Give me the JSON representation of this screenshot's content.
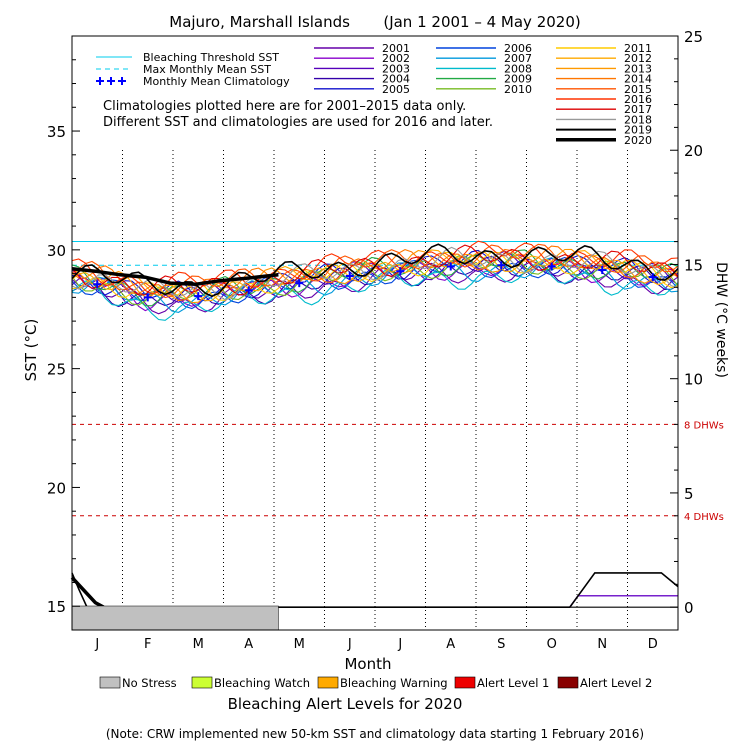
{
  "chart_data": {
    "type": "line",
    "title": "Majuro, Marshall Islands       (Jan 1 2001 – 4 May 2020)",
    "xlabel": "Month",
    "ylabel": "SST (°C)",
    "y2label": "DHW (°C weeks)",
    "ylim": [
      14,
      39
    ],
    "y2lim": [
      -1,
      25
    ],
    "yticks": [
      15,
      20,
      25,
      30,
      35
    ],
    "y2ticks": [
      0,
      5,
      10,
      15,
      20,
      25
    ],
    "months": [
      "J",
      "F",
      "M",
      "A",
      "M",
      "J",
      "J",
      "A",
      "S",
      "O",
      "N",
      "D"
    ],
    "bleaching_threshold_sst": 30.35,
    "max_monthly_mean_sst": 29.35,
    "monthly_mean_climatology": [
      28.55,
      28.0,
      28.05,
      28.3,
      28.6,
      28.9,
      29.1,
      29.3,
      29.35,
      29.3,
      29.15,
      28.85
    ],
    "dhw_reference_lines": [
      {
        "value": 8,
        "label": "8 DHWs",
        "color": "#cc0000"
      },
      {
        "value": 4,
        "label": "4 DHWs",
        "color": "#cc0000"
      }
    ],
    "series": [
      {
        "name": "2001",
        "color": "#6600aa",
        "base": 28.5
      },
      {
        "name": "2002",
        "color": "#8800cc",
        "base": 28.7
      },
      {
        "name": "2003",
        "color": "#5500bb",
        "base": 28.8
      },
      {
        "name": "2004",
        "color": "#3300aa",
        "base": 28.6
      },
      {
        "name": "2005",
        "color": "#1111cc",
        "base": 28.9
      },
      {
        "name": "2006",
        "color": "#0044dd",
        "base": 28.7
      },
      {
        "name": "2007",
        "color": "#0099dd",
        "base": 28.6
      },
      {
        "name": "2008",
        "color": "#00bbcc",
        "base": 28.3
      },
      {
        "name": "2009",
        "color": "#22aa44",
        "base": 28.9
      },
      {
        "name": "2010",
        "color": "#77bb22",
        "base": 28.8
      },
      {
        "name": "2011",
        "color": "#ffcc00",
        "base": 28.9
      },
      {
        "name": "2012",
        "color": "#ffaa00",
        "base": 29.0
      },
      {
        "name": "2013",
        "color": "#ff9900",
        "base": 29.0
      },
      {
        "name": "2014",
        "color": "#ff7700",
        "base": 29.1
      },
      {
        "name": "2015",
        "color": "#ff5500",
        "base": 29.2
      },
      {
        "name": "2016",
        "color": "#ff3300",
        "base": 29.3
      },
      {
        "name": "2017",
        "color": "#dd0000",
        "base": 29.1
      },
      {
        "name": "2018",
        "color": "#999999",
        "base": 29.0
      },
      {
        "name": "2019",
        "color": "#000000",
        "base": 29.2
      },
      {
        "name": "2020",
        "color": "#000000",
        "base": 28.9
      }
    ],
    "sst_2020_points": [
      [
        1,
        29.2
      ],
      [
        15,
        29.1
      ],
      [
        30,
        28.95
      ],
      [
        45,
        28.85
      ],
      [
        60,
        28.6
      ],
      [
        75,
        28.55
      ],
      [
        90,
        28.7
      ],
      [
        105,
        28.8
      ],
      [
        125,
        28.95
      ]
    ],
    "dhw_2019_points": [
      [
        1,
        1.5
      ],
      [
        5,
        0.8
      ],
      [
        10,
        0
      ],
      [
        300,
        0
      ],
      [
        315,
        1.5
      ],
      [
        330,
        1.5
      ],
      [
        355,
        1.5
      ],
      [
        365,
        0.9
      ]
    ],
    "dhw_2020_points": [
      [
        1,
        1.3
      ],
      [
        15,
        0.2
      ],
      [
        20,
        0
      ]
    ],
    "alert_bar_2020": {
      "start_day": 1,
      "end_day": 125,
      "level": "No Stress"
    },
    "legend_series_lines": [
      {
        "label": "Bleaching Threshold SST",
        "color": "#00ccee",
        "style": "solid"
      },
      {
        "label": "Max Monthly Mean SST",
        "color": "#00ccee",
        "style": "dashed"
      },
      {
        "label": "Monthly Mean Climatology",
        "color": "#0000ff",
        "style": "plus"
      }
    ],
    "note_lines": [
      "Climatologies plotted here are for 2001–2015 data only.",
      "Different SST and climatologies are used for 2016 and later."
    ],
    "alert_legend": [
      {
        "label": "No Stress",
        "color": "#c0c0c0"
      },
      {
        "label": "Bleaching Watch",
        "color": "#ccff33"
      },
      {
        "label": "Bleaching Warning",
        "color": "#ffaa00"
      },
      {
        "label": "Alert Level 1",
        "color": "#ee0000"
      },
      {
        "label": "Alert Level 2",
        "color": "#880000"
      }
    ],
    "alert_title": "Bleaching Alert Levels for 2020",
    "footnote": "(Note: CRW implemented new 50-km SST and climatology data starting 1 February 2016)"
  }
}
